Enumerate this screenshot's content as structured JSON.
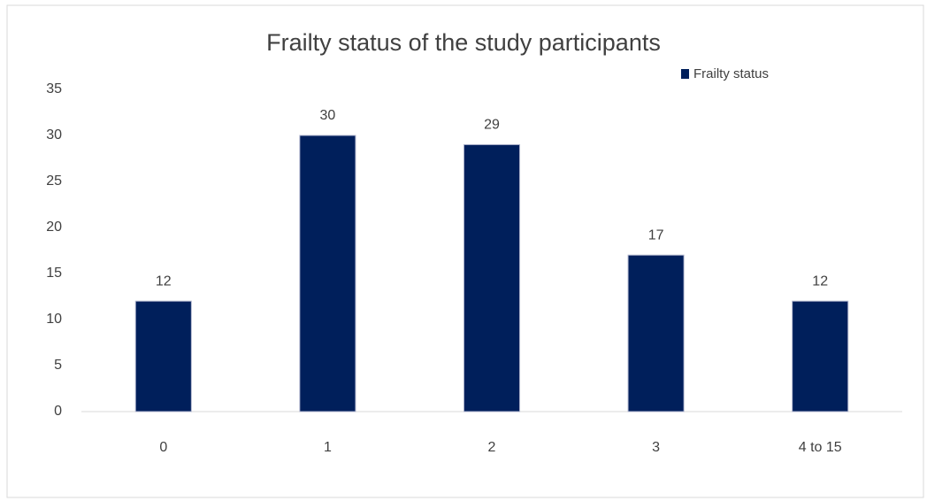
{
  "chart_data": {
    "type": "bar",
    "title": "Frailty status of the study participants",
    "categories": [
      "0",
      "1",
      "2",
      "3",
      "4 to  15"
    ],
    "series": [
      {
        "name": "Frailty status",
        "color": "#001f5b",
        "values": [
          12,
          30,
          29,
          17,
          12
        ]
      }
    ],
    "ylim": [
      0,
      35
    ],
    "yticks": [
      0,
      5,
      10,
      15,
      20,
      25,
      30,
      35
    ],
    "grid": false,
    "legend": "top-right",
    "data_labels": true
  }
}
